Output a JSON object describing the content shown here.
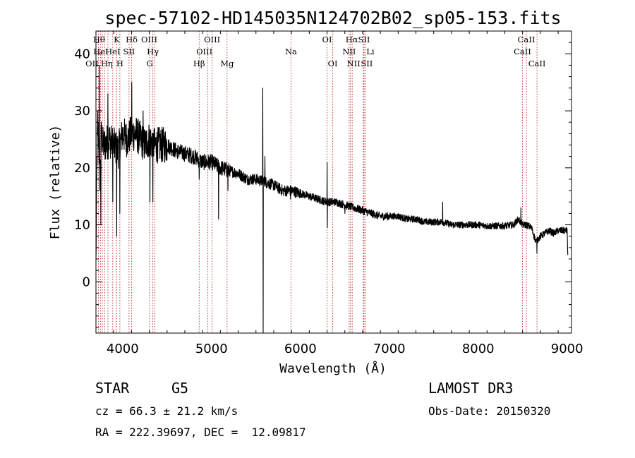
{
  "chart_data": {
    "type": "line",
    "title": "spec-57102-HD145035N124702B02_sp05-153.fits",
    "xlabel": "Wavelength (Å)",
    "ylabel": "Flux (relative)",
    "xlim": [
      3700,
      9050
    ],
    "ylim": [
      -9,
      44
    ],
    "xticks": [
      4000,
      5000,
      6000,
      7000,
      8000,
      9000
    ],
    "yticks": [
      0,
      10,
      20,
      30,
      40
    ],
    "spectrum_anchors": {
      "x": [
        3700,
        3710,
        3720,
        3730,
        3745,
        3760,
        3780,
        3800,
        3850,
        3900,
        3950,
        4000,
        4050,
        4100,
        4150,
        4200,
        4250,
        4300,
        4350,
        4400,
        4500,
        4600,
        4700,
        4800,
        4850,
        4900,
        5000,
        5100,
        5200,
        5300,
        5400,
        5500,
        5600,
        5700,
        5800,
        5900,
        6000,
        6100,
        6200,
        6300,
        6400,
        6500,
        6600,
        6700,
        6800,
        6900,
        7000,
        7100,
        7200,
        7300,
        7400,
        7500,
        7600,
        7700,
        7800,
        7900,
        8000,
        8100,
        8200,
        8300,
        8400,
        8450,
        8500,
        8540,
        8600,
        8650,
        8700,
        8750,
        8800,
        8850,
        8900,
        8950,
        9000,
        9010
      ],
      "y": [
        3,
        20,
        28,
        25,
        18,
        26,
        24,
        24,
        25,
        24,
        23,
        26,
        25,
        26,
        26,
        25,
        24,
        25,
        24,
        24,
        24,
        23,
        22.5,
        22,
        21.5,
        21,
        21,
        20,
        19.5,
        19,
        18,
        18,
        17.5,
        17,
        16,
        16,
        15.5,
        15,
        14.5,
        14,
        14,
        13.5,
        13,
        12.5,
        12,
        11.5,
        11.5,
        11.5,
        11,
        11,
        10.5,
        10.5,
        10.5,
        10,
        10,
        10,
        10,
        9.8,
        9.8,
        9.8,
        10,
        11,
        10,
        10,
        9.5,
        7,
        8,
        8.5,
        9,
        8.5,
        9,
        9,
        9,
        4
      ]
    },
    "spectrum_features": [
      {
        "x": 3740,
        "y": 38
      },
      {
        "x": 3755,
        "y": 10
      },
      {
        "x": 3835,
        "y": 33
      },
      {
        "x": 3889,
        "y": 14
      },
      {
        "x": 3934,
        "y": 8
      },
      {
        "x": 3969,
        "y": 12
      },
      {
        "x": 4102,
        "y": 35
      },
      {
        "x": 4230,
        "y": 30
      },
      {
        "x": 4308,
        "y": 14
      },
      {
        "x": 4341,
        "y": 14
      },
      {
        "x": 4861,
        "y": 18
      },
      {
        "x": 5080,
        "y": 11
      },
      {
        "x": 5184,
        "y": 16
      },
      {
        "x": 5577,
        "y": 34
      },
      {
        "x": 5582,
        "y": -9
      },
      {
        "x": 5600,
        "y": 22
      },
      {
        "x": 5890,
        "y": 14.5
      },
      {
        "x": 6300,
        "y": 21
      },
      {
        "x": 6302,
        "y": 9.5
      },
      {
        "x": 6500,
        "y": 12
      },
      {
        "x": 7600,
        "y": 14
      },
      {
        "x": 8480,
        "y": 13
      },
      {
        "x": 8660,
        "y": 5
      }
    ],
    "lines": [
      {
        "x": 3727,
        "label": "OII",
        "row": 3,
        "dx": -9
      },
      {
        "x": 3750,
        "label": "Hθ",
        "row": 1,
        "dx": -2
      },
      {
        "x": 3771,
        "label": "HeI",
        "row": 2,
        "dx": -2
      },
      {
        "x": 3798,
        "label": "Hη",
        "row": 3,
        "dx": 3
      },
      {
        "x": 3835,
        "label": "",
        "row": 1,
        "dx": 0
      },
      {
        "x": 3889,
        "label": "HeI",
        "row": 2,
        "dx": 0
      },
      {
        "x": 3934,
        "label": "K",
        "row": 1,
        "dx": 0
      },
      {
        "x": 3969,
        "label": "H",
        "row": 3,
        "dx": 0
      },
      {
        "x": 4072,
        "label": "SII",
        "row": 2,
        "dx": 0
      },
      {
        "x": 4102,
        "label": "Hδ",
        "row": 1,
        "dx": 0
      },
      {
        "x": 4304,
        "label": "G",
        "row": 3,
        "dx": 0
      },
      {
        "x": 4340,
        "label": "Hγ",
        "row": 2,
        "dx": 0
      },
      {
        "x": 4363,
        "label": "OIII",
        "row": 1,
        "dx": -8
      },
      {
        "x": 4861,
        "label": "Hβ",
        "row": 3,
        "dx": 0
      },
      {
        "x": 4959,
        "label": "OIII",
        "row": 2,
        "dx": -5
      },
      {
        "x": 5007,
        "label": "OIII",
        "row": 1,
        "dx": 0
      },
      {
        "x": 5175,
        "label": "Mg",
        "row": 3,
        "dx": 0
      },
      {
        "x": 5894,
        "label": "Na",
        "row": 2,
        "dx": 0
      },
      {
        "x": 6300,
        "label": "OI",
        "row": 1,
        "dx": 0
      },
      {
        "x": 6364,
        "label": "OI",
        "row": 3,
        "dx": 0
      },
      {
        "x": 6548,
        "label": "NII",
        "row": 2,
        "dx": 0
      },
      {
        "x": 6563,
        "label": "Hα",
        "row": 1,
        "dx": 2
      },
      {
        "x": 6583,
        "label": "NII",
        "row": 3,
        "dx": 2
      },
      {
        "x": 6708,
        "label": "Li",
        "row": 2,
        "dx": 10
      },
      {
        "x": 6716,
        "label": "SII",
        "row": 1,
        "dx": 0
      },
      {
        "x": 6731,
        "label": "SII",
        "row": 3,
        "dx": 2
      },
      {
        "x": 8498,
        "label": "CaII",
        "row": 2,
        "dx": 0
      },
      {
        "x": 8542,
        "label": "CaII",
        "row": 1,
        "dx": 0
      },
      {
        "x": 8662,
        "label": "CaII",
        "row": 3,
        "dx": 0
      }
    ]
  },
  "info": {
    "object_class": "STAR",
    "subclass": "G5",
    "survey": "LAMOST DR3",
    "redshift": "cz = 66.3 ± 21.2 km/s",
    "obs_date": "Obs-Date: 20150320",
    "coords": "RA = 222.39697, DEC =  12.09817"
  },
  "colors": {
    "axis": "#000000",
    "spectrum": "#000000",
    "line_marker": "#b22222"
  }
}
